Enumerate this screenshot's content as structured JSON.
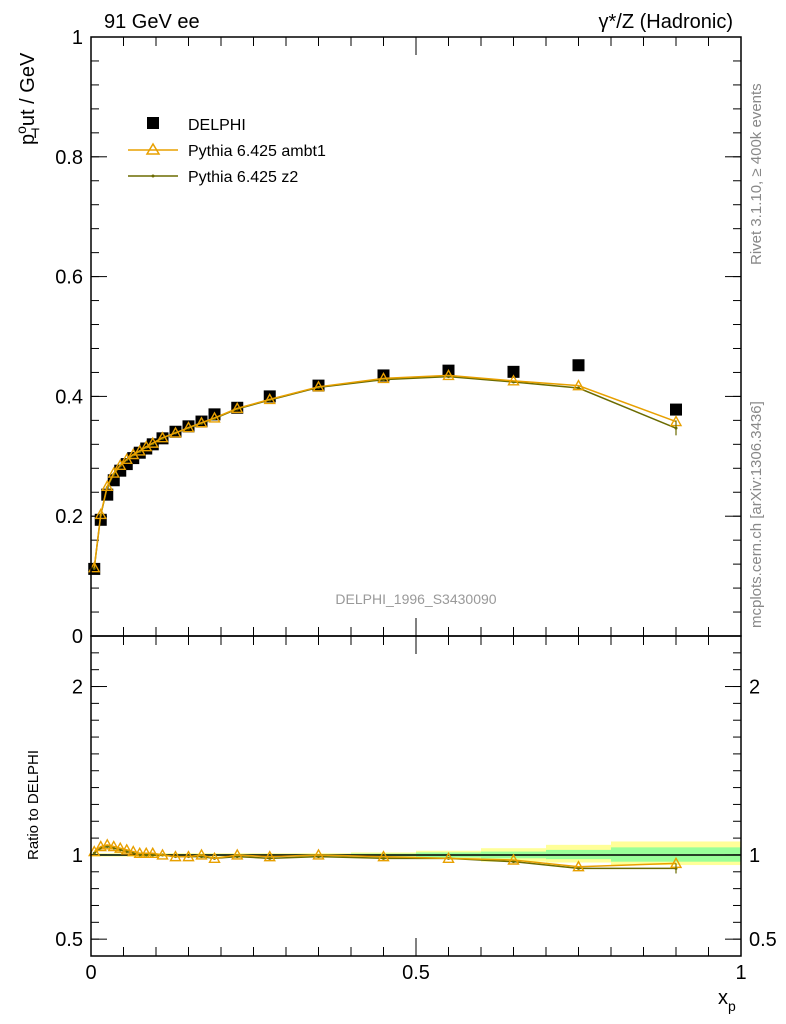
{
  "header": {
    "left_title": "91 GeV ee",
    "right_title": "γ*/Z (Hadronic)"
  },
  "side_text": {
    "rivet": "Rivet 3.1.10, ≥ 400k events",
    "mcplots": "mcplots.cern.ch [arXiv:1306.3436]"
  },
  "watermark": "DELPHI_1996_S3430090",
  "axis_labels": {
    "y_main_p": "p",
    "y_main_sub": "T",
    "y_main_sup": "o",
    "y_main_rest": "ut / GeV",
    "y_ratio": "Ratio to DELPHI",
    "x_main": "x",
    "x_sub": "p"
  },
  "legend": {
    "position": "top-left",
    "entries": [
      {
        "label": "DELPHI",
        "marker": "square",
        "color": "#000000"
      },
      {
        "label": "Pythia 6.425 ambt1",
        "marker": "triangle",
        "color": "#e8a000"
      },
      {
        "label": "Pythia 6.425 z2",
        "marker": "line",
        "color": "#6b6b00"
      }
    ]
  },
  "chart_data": [
    {
      "type": "scatter",
      "panel": "main",
      "xlim": [
        0,
        1
      ],
      "ylim": [
        0,
        1
      ],
      "y_ticks": [
        0,
        0.2,
        0.4,
        0.6,
        0.8,
        1
      ],
      "y_tick_labels": [
        "0",
        "0.2",
        "0.4",
        "0.6",
        "0.8",
        "1"
      ],
      "x": [
        0.005,
        0.015,
        0.025,
        0.035,
        0.045,
        0.055,
        0.065,
        0.075,
        0.085,
        0.095,
        0.11,
        0.13,
        0.15,
        0.17,
        0.19,
        0.225,
        0.275,
        0.35,
        0.45,
        0.55,
        0.65,
        0.75,
        0.9
      ],
      "series": [
        {
          "name": "DELPHI",
          "color": "#000000",
          "values": [
            0.112,
            0.194,
            0.236,
            0.26,
            0.276,
            0.287,
            0.297,
            0.306,
            0.313,
            0.32,
            0.33,
            0.341,
            0.35,
            0.358,
            0.37,
            0.381,
            0.4,
            0.418,
            0.435,
            0.443,
            0.441,
            0.452,
            0.378
          ]
        },
        {
          "name": "Pythia 6.425 ambt1",
          "color": "#e8a000",
          "values": [
            0.114,
            0.203,
            0.25,
            0.272,
            0.285,
            0.295,
            0.303,
            0.309,
            0.316,
            0.322,
            0.331,
            0.339,
            0.348,
            0.356,
            0.364,
            0.38,
            0.395,
            0.416,
            0.43,
            0.435,
            0.426,
            0.418,
            0.358
          ]
        },
        {
          "name": "Pythia 6.425 z2",
          "color": "#6b6b00",
          "values": [
            0.113,
            0.202,
            0.248,
            0.27,
            0.284,
            0.294,
            0.302,
            0.308,
            0.315,
            0.321,
            0.33,
            0.339,
            0.347,
            0.355,
            0.363,
            0.379,
            0.394,
            0.415,
            0.428,
            0.433,
            0.424,
            0.414,
            0.347
          ]
        }
      ]
    },
    {
      "type": "scatter",
      "panel": "ratio",
      "xlim": [
        0,
        1
      ],
      "ylim": [
        0.4,
        2.3
      ],
      "y_ticks": [
        0.5,
        1,
        2
      ],
      "y_tick_labels": [
        "0.5",
        "1",
        "2"
      ],
      "x_ticks": [
        0,
        0.5,
        1
      ],
      "x_tick_labels": [
        "0",
        "0.5",
        "1"
      ],
      "x": [
        0.005,
        0.015,
        0.025,
        0.035,
        0.045,
        0.055,
        0.065,
        0.075,
        0.085,
        0.095,
        0.11,
        0.13,
        0.15,
        0.17,
        0.19,
        0.225,
        0.275,
        0.35,
        0.45,
        0.55,
        0.65,
        0.75,
        0.9
      ],
      "series": [
        {
          "name": "Pythia 6.425 ambt1",
          "color": "#e8a000",
          "values": [
            1.02,
            1.05,
            1.06,
            1.05,
            1.04,
            1.03,
            1.02,
            1.01,
            1.01,
            1.01,
            1.0,
            0.99,
            0.99,
            1.0,
            0.98,
            1.0,
            0.99,
            1.0,
            0.99,
            0.98,
            0.97,
            0.93,
            0.95
          ]
        },
        {
          "name": "Pythia 6.425 z2",
          "color": "#6b6b00",
          "values": [
            1.01,
            1.04,
            1.05,
            1.04,
            1.03,
            1.02,
            1.01,
            1.0,
            1.0,
            1.0,
            1.0,
            0.99,
            0.99,
            0.99,
            0.98,
            0.99,
            0.98,
            0.99,
            0.98,
            0.98,
            0.96,
            0.92,
            0.92
          ]
        }
      ],
      "bands": [
        {
          "x0": 0.0,
          "x1": 0.4,
          "yellow": [
            0.99,
            1.01
          ],
          "green": [
            0.995,
            1.005
          ]
        },
        {
          "x0": 0.4,
          "x1": 0.5,
          "yellow": [
            0.985,
            1.015
          ],
          "green": [
            0.992,
            1.008
          ]
        },
        {
          "x0": 0.5,
          "x1": 0.6,
          "yellow": [
            0.975,
            1.025
          ],
          "green": [
            0.985,
            1.015
          ]
        },
        {
          "x0": 0.6,
          "x1": 0.7,
          "yellow": [
            0.96,
            1.04
          ],
          "green": [
            0.98,
            1.02
          ]
        },
        {
          "x0": 0.7,
          "x1": 0.8,
          "yellow": [
            0.955,
            1.06
          ],
          "green": [
            0.975,
            1.03
          ]
        },
        {
          "x0": 0.8,
          "x1": 1.0,
          "yellow": [
            0.94,
            1.08
          ],
          "green": [
            0.96,
            1.045
          ]
        }
      ]
    }
  ]
}
